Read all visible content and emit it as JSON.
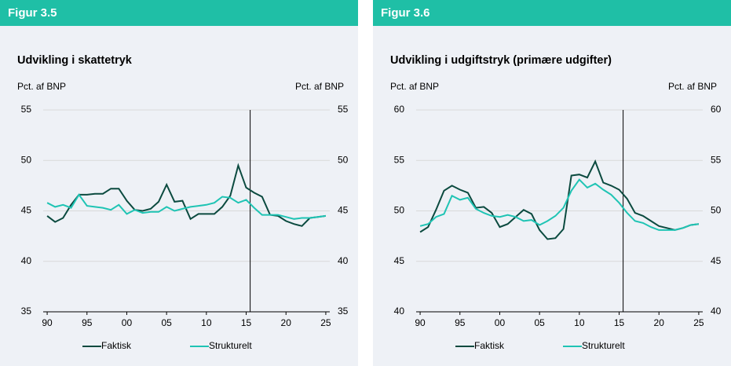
{
  "chart_data": [
    {
      "type": "line",
      "header": "Figur 3.5",
      "title": "Udvikling i skattetryk",
      "ylabel": "Pct. af BNP",
      "y2label": "Pct. af BNP",
      "x": [
        1990,
        1991,
        1992,
        1993,
        1994,
        1995,
        1996,
        1997,
        1998,
        1999,
        2000,
        2001,
        2002,
        2003,
        2004,
        2005,
        2006,
        2007,
        2008,
        2009,
        2010,
        2011,
        2012,
        2013,
        2014,
        2015,
        2016,
        2017,
        2018,
        2019,
        2020,
        2021,
        2022,
        2023,
        2024,
        2025
      ],
      "xlim": [
        1989.5,
        2025.5
      ],
      "xticks": [
        {
          "value": 1990,
          "label": "90"
        },
        {
          "value": 1995,
          "label": "95"
        },
        {
          "value": 2000,
          "label": "00"
        },
        {
          "value": 2005,
          "label": "05"
        },
        {
          "value": 2010,
          "label": "10"
        },
        {
          "value": 2015,
          "label": "15"
        },
        {
          "value": 2020,
          "label": "20"
        },
        {
          "value": 2025,
          "label": "25"
        }
      ],
      "ylim": [
        35,
        55
      ],
      "yticks": [
        35,
        40,
        45,
        50,
        55
      ],
      "y2lim": [
        35,
        55
      ],
      "y2ticks": [
        35,
        40,
        45,
        50,
        55
      ],
      "vline": 2015.5,
      "grid": true,
      "series": [
        {
          "name": "Faktisk",
          "color": "#0b4a3f",
          "values": [
            44.5,
            43.9,
            44.3,
            45.6,
            46.6,
            46.6,
            46.7,
            46.7,
            47.2,
            47.2,
            46.0,
            45.1,
            45.0,
            45.2,
            45.9,
            47.6,
            45.9,
            46.0,
            44.2,
            44.7,
            44.7,
            44.7,
            45.4,
            46.5,
            49.5,
            47.3,
            46.8,
            46.4,
            44.6,
            44.5,
            44.0,
            43.7,
            43.5,
            44.3,
            44.4,
            44.5
          ]
        },
        {
          "name": "Strukturelt",
          "color": "#1fc4b4",
          "values": [
            45.8,
            45.4,
            45.6,
            45.3,
            46.6,
            45.5,
            45.4,
            45.3,
            45.1,
            45.6,
            44.7,
            45.1,
            44.8,
            44.9,
            44.9,
            45.4,
            45.0,
            45.2,
            45.4,
            45.5,
            45.6,
            45.8,
            46.4,
            46.3,
            45.8,
            46.1,
            45.3,
            44.6,
            44.6,
            44.6,
            44.4,
            44.2,
            44.3,
            44.3,
            44.4,
            44.5
          ]
        }
      ]
    },
    {
      "type": "line",
      "header": "Figur 3.6",
      "title": "Udvikling i udgiftstryk (primære udgifter)",
      "ylabel": "Pct. af BNP",
      "y2label": "Pct. af BNP",
      "x": [
        1990,
        1991,
        1992,
        1993,
        1994,
        1995,
        1996,
        1997,
        1998,
        1999,
        2000,
        2001,
        2002,
        2003,
        2004,
        2005,
        2006,
        2007,
        2008,
        2009,
        2010,
        2011,
        2012,
        2013,
        2014,
        2015,
        2016,
        2017,
        2018,
        2019,
        2020,
        2021,
        2022,
        2023,
        2024,
        2025
      ],
      "xlim": [
        1989.5,
        2025.5
      ],
      "xticks": [
        {
          "value": 1990,
          "label": "90"
        },
        {
          "value": 1995,
          "label": "95"
        },
        {
          "value": 2000,
          "label": "00"
        },
        {
          "value": 2005,
          "label": "05"
        },
        {
          "value": 2010,
          "label": "10"
        },
        {
          "value": 2015,
          "label": "15"
        },
        {
          "value": 2020,
          "label": "20"
        },
        {
          "value": 2025,
          "label": "25"
        }
      ],
      "ylim": [
        40,
        60
      ],
      "yticks": [
        40,
        45,
        50,
        55,
        60
      ],
      "y2lim": [
        40,
        60
      ],
      "y2ticks": [
        40,
        45,
        50,
        55,
        60
      ],
      "vline": 2015.5,
      "grid": true,
      "series": [
        {
          "name": "Faktisk",
          "color": "#0b4a3f",
          "values": [
            47.9,
            48.4,
            50.1,
            52.0,
            52.5,
            52.1,
            51.8,
            50.3,
            50.4,
            49.8,
            48.4,
            48.7,
            49.4,
            50.1,
            49.7,
            48.1,
            47.2,
            47.3,
            48.2,
            53.5,
            53.6,
            53.3,
            54.9,
            52.8,
            52.5,
            52.1,
            51.2,
            49.8,
            49.5,
            49.0,
            48.5,
            48.3,
            48.1,
            48.3,
            48.6,
            48.7
          ]
        },
        {
          "name": "Strukturelt",
          "color": "#1fc4b4",
          "values": [
            48.5,
            48.7,
            49.4,
            49.7,
            51.5,
            51.1,
            51.3,
            50.2,
            49.8,
            49.5,
            49.4,
            49.6,
            49.4,
            49.0,
            49.1,
            48.6,
            49.0,
            49.5,
            50.3,
            52.0,
            53.1,
            52.3,
            52.7,
            52.1,
            51.6,
            50.8,
            49.8,
            49.0,
            48.8,
            48.4,
            48.1,
            48.1,
            48.1,
            48.3,
            48.6,
            48.7
          ]
        }
      ]
    }
  ]
}
